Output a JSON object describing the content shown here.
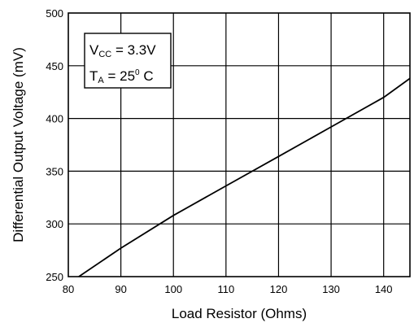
{
  "chart_data": {
    "type": "line",
    "xlabel": "Load Resistor (Ohms)",
    "ylabel": "Differential Output Voltage (mV)",
    "xlim": [
      80,
      145
    ],
    "ylim": [
      250,
      500
    ],
    "xticks": [
      80,
      90,
      100,
      110,
      120,
      130,
      140
    ],
    "yticks": [
      250,
      300,
      350,
      400,
      450,
      500
    ],
    "grid": true,
    "series": [
      {
        "x": [
          82,
          90,
          100,
          110,
          120,
          130,
          140,
          145
        ],
        "y": [
          250,
          277,
          308,
          336,
          364,
          392,
          420,
          438
        ]
      }
    ],
    "annotations": {
      "vcc": {
        "base": "V",
        "sub": "CC",
        "value": " = 3.3V"
      },
      "ta": {
        "base": "T",
        "sub": "A",
        "value": " = 25",
        "sup": "0",
        "unit": " C"
      }
    }
  }
}
